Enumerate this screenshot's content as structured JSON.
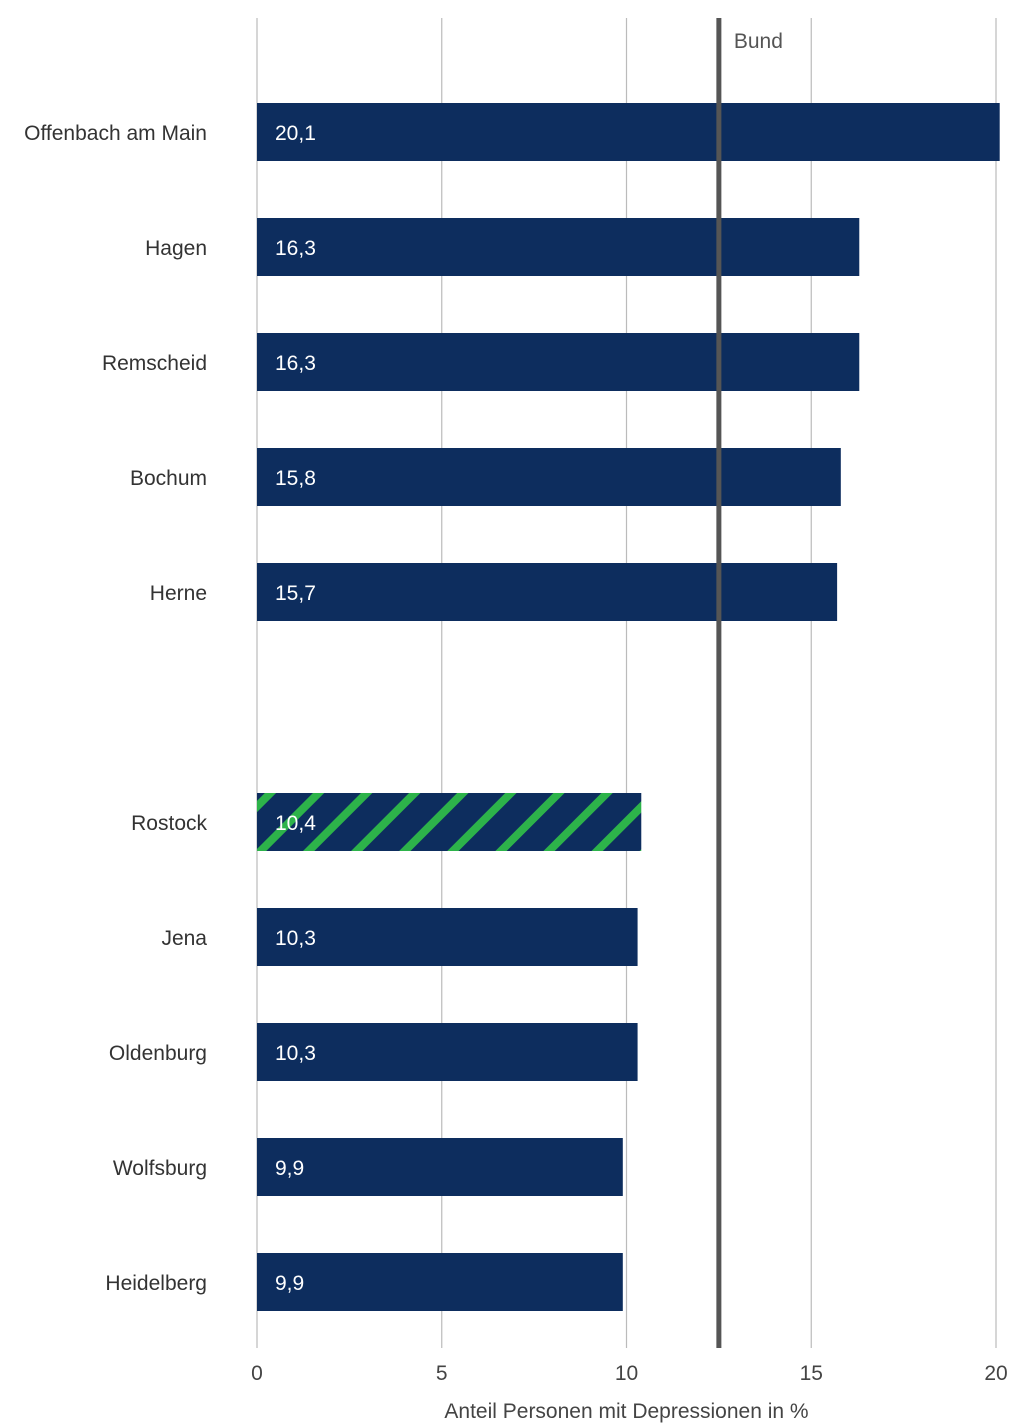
{
  "chart_data": {
    "type": "bar",
    "orientation": "horizontal",
    "categories": [
      "Offenbach am Main",
      "Hagen",
      "Remscheid",
      "Bochum",
      "Herne",
      "Rostock",
      "Jena",
      "Oldenburg",
      "Wolfsburg",
      "Heidelberg"
    ],
    "values": [
      20.1,
      16.3,
      16.3,
      15.8,
      15.7,
      10.4,
      10.3,
      10.3,
      9.9,
      9.9
    ],
    "value_labels": [
      "20,1",
      "16,3",
      "16,3",
      "15,8",
      "15,7",
      "10,4",
      "10,3",
      "10,3",
      "9,9",
      "9,9"
    ],
    "highlighted_category": "Rostock",
    "xlabel": "Anteil Personen mit Depressionen in %",
    "xlim": [
      0,
      20
    ],
    "xticks": [
      0,
      5,
      10,
      15,
      20
    ],
    "grid": true,
    "reference_line": {
      "label": "Bund",
      "value": 12.5
    },
    "colors": {
      "bar": "#0d2d5e",
      "highlight_stripe": "#2db34a",
      "grid": "#bbbbbb",
      "reference": "#555555"
    }
  }
}
